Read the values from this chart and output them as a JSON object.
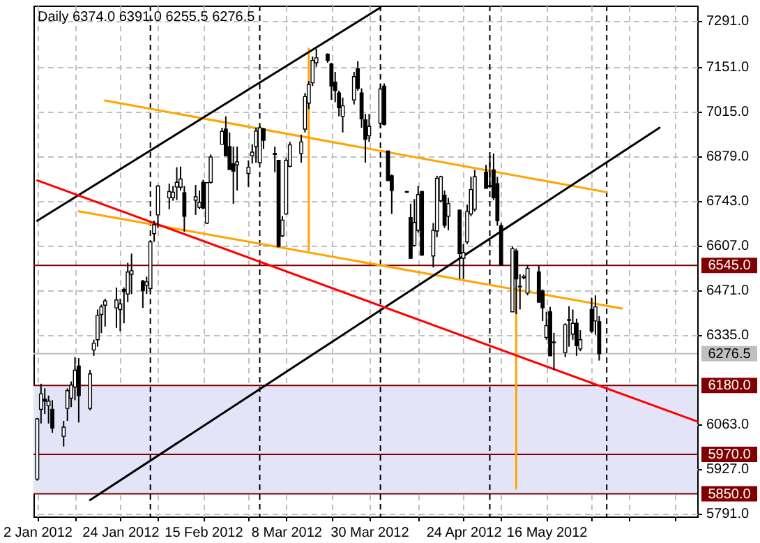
{
  "chart_data": {
    "type": "candlestick",
    "title": "Daily 6374.0 6391.0 6255.5 6276.5",
    "x": [
      "2012-01-02",
      "2012-01-03",
      "2012-01-04",
      "2012-01-05",
      "2012-01-06",
      "2012-01-09",
      "2012-01-10",
      "2012-01-11",
      "2012-01-12",
      "2012-01-13",
      "2012-01-16",
      "2012-01-17",
      "2012-01-18",
      "2012-01-19",
      "2012-01-20",
      "2012-01-23",
      "2012-01-24",
      "2012-01-25",
      "2012-01-26",
      "2012-01-27",
      "2012-01-30",
      "2012-01-31",
      "2012-02-01",
      "2012-02-02",
      "2012-02-03",
      "2012-02-06",
      "2012-02-07",
      "2012-02-08",
      "2012-02-09",
      "2012-02-10",
      "2012-02-13",
      "2012-02-14",
      "2012-02-15",
      "2012-02-16",
      "2012-02-17",
      "2012-02-20",
      "2012-02-21",
      "2012-02-22",
      "2012-02-23",
      "2012-02-24",
      "2012-02-27",
      "2012-02-28",
      "2012-02-29",
      "2012-03-01",
      "2012-03-02",
      "2012-03-05",
      "2012-03-06",
      "2012-03-07",
      "2012-03-08",
      "2012-03-09",
      "2012-03-12",
      "2012-03-13",
      "2012-03-14",
      "2012-03-15",
      "2012-03-16",
      "2012-03-19",
      "2012-03-20",
      "2012-03-21",
      "2012-03-22",
      "2012-03-23",
      "2012-03-26",
      "2012-03-27",
      "2012-03-28",
      "2012-03-29",
      "2012-03-30",
      "2012-04-02",
      "2012-04-03",
      "2012-04-04",
      "2012-04-05",
      "2012-04-09",
      "2012-04-10",
      "2012-04-11",
      "2012-04-12",
      "2012-04-13",
      "2012-04-16",
      "2012-04-17",
      "2012-04-18",
      "2012-04-19",
      "2012-04-20",
      "2012-04-23",
      "2012-04-24",
      "2012-04-25",
      "2012-04-26",
      "2012-04-27",
      "2012-04-30",
      "2012-05-01",
      "2012-05-02",
      "2012-05-03",
      "2012-05-04",
      "2012-05-07",
      "2012-05-08",
      "2012-05-09",
      "2012-05-10",
      "2012-05-11",
      "2012-05-14",
      "2012-05-15",
      "2012-05-16",
      "2012-05-17",
      "2012-05-18",
      "2012-05-21",
      "2012-05-22",
      "2012-05-23",
      "2012-05-24",
      "2012-05-25",
      "2012-05-28",
      "2012-05-29",
      "2012-05-30"
    ],
    "ohlc": [
      [
        5895,
        6081,
        5890,
        6078
      ],
      [
        6107,
        6185,
        6064,
        6154
      ],
      [
        6138,
        6171,
        6093,
        6132
      ],
      [
        6118,
        6149,
        6064,
        6132
      ],
      [
        6107,
        6135,
        6036,
        6050
      ],
      [
        6025,
        6072,
        5994,
        6053
      ],
      [
        6110,
        6171,
        6072,
        6164
      ],
      [
        6141,
        6192,
        6114,
        6181
      ],
      [
        6175,
        6266,
        6135,
        6226
      ],
      [
        6239,
        6263,
        6067,
        6149
      ],
      [
        6110,
        6227,
        6104,
        6215
      ],
      [
        6288,
        6319,
        6270,
        6308
      ],
      [
        6319,
        6411,
        6298,
        6393
      ],
      [
        6396,
        6426,
        6339,
        6419
      ],
      [
        6424,
        6444,
        6359,
        6437
      ],
      [
        6416,
        6478,
        6355,
        6440
      ],
      [
        6411,
        6444,
        6345,
        6428
      ],
      [
        6472,
        6478,
        6369,
        6466
      ],
      [
        6458,
        6553,
        6433,
        6525
      ],
      [
        6518,
        6581,
        6458,
        6529
      ],
      [
        6497,
        6501,
        6416,
        6468
      ],
      [
        6485,
        6511,
        6458,
        6495
      ],
      [
        6475,
        6620,
        6468,
        6617
      ],
      [
        6642,
        6681,
        6617,
        6669
      ],
      [
        6699,
        6790,
        6659,
        6787
      ],
      [
        6751,
        6794,
        6716,
        6770
      ],
      [
        6751,
        6787,
        6742,
        6768
      ],
      [
        6784,
        6844,
        6744,
        6798
      ],
      [
        6783,
        6846,
        6773,
        6808
      ],
      [
        6766,
        6787,
        6648,
        6695
      ],
      [
        6744,
        6790,
        6699,
        6754
      ],
      [
        6722,
        6773,
        6716,
        6737
      ],
      [
        6798,
        6806,
        6716,
        6720
      ],
      [
        6674,
        6798,
        6671,
        6797
      ],
      [
        6798,
        6883,
        6794,
        6875
      ],
      [
        6914,
        6964,
        6914,
        6953
      ],
      [
        6960,
        6999,
        6878,
        6879
      ],
      [
        6907,
        6950,
        6836,
        6837
      ],
      [
        6855,
        6907,
        6733,
        6832
      ],
      [
        6851,
        6907,
        6773,
        6860
      ],
      [
        6825,
        6865,
        6784,
        6844
      ],
      [
        6879,
        6914,
        6855,
        6890
      ],
      [
        6907,
        6964,
        6858,
        6954
      ],
      [
        6858,
        6971,
        6857,
        6964
      ],
      [
        6961,
        6964,
        6900,
        6926
      ],
      [
        6886,
        6907,
        6829,
        6883
      ],
      [
        6865,
        6866,
        6600,
        6603
      ],
      [
        6635,
        6695,
        6631,
        6683
      ],
      [
        6702,
        6872,
        6700,
        6865
      ],
      [
        6847,
        6921,
        6844,
        6912
      ],
      [
        6886,
        6943,
        6858,
        6921
      ],
      [
        6960,
        7070,
        6950,
        7059
      ],
      [
        7039,
        7106,
        7021,
        7096
      ],
      [
        7101,
        7181,
        7091,
        7169
      ],
      [
        7162,
        7205,
        7150,
        7177
      ],
      [
        7188,
        7191,
        7162,
        7169
      ],
      [
        7158,
        7162,
        7049,
        7091
      ],
      [
        7103,
        7134,
        7042,
        7077
      ],
      [
        7070,
        7077,
        6999,
        7025
      ],
      [
        6999,
        7056,
        6950,
        7031
      ],
      [
        7049,
        7134,
        7035,
        7120
      ],
      [
        7144,
        7167,
        7077,
        7084
      ],
      [
        7070,
        7084,
        6964,
        6992
      ],
      [
        6988,
        7006,
        6858,
        6929
      ],
      [
        6940,
        7006,
        6921,
        6968
      ],
      [
        6978,
        7099,
        6964,
        7082
      ],
      [
        7091,
        7099,
        6971,
        6974
      ],
      [
        6893,
        6895,
        6801,
        6804
      ],
      [
        6818,
        6822,
        6702,
        6773
      ],
      [
        6770,
        6772,
        6766,
        6768
      ],
      [
        6691,
        6733,
        6565,
        6567
      ],
      [
        6606,
        6747,
        6603,
        6676
      ],
      [
        6652,
        6787,
        6645,
        6761
      ],
      [
        6770,
        6772,
        6574,
        6577
      ],
      [
        6574,
        6674,
        6539,
        6652
      ],
      [
        6650,
        6818,
        6631,
        6810
      ],
      [
        6742,
        6818,
        6737,
        6815
      ],
      [
        6759,
        6773,
        6659,
        6667
      ],
      [
        6695,
        6751,
        6652,
        6733
      ],
      [
        6713,
        6716,
        6504,
        6581
      ],
      [
        6567,
        6610,
        6504,
        6584
      ],
      [
        6617,
        6730,
        6610,
        6709
      ],
      [
        6702,
        6815,
        6695,
        6776
      ],
      [
        6716,
        6836,
        6709,
        6815
      ],
      [
        6829,
        6851,
        6780,
        6780
      ],
      [
        6785,
        6879,
        6780,
        6788
      ],
      [
        6836,
        6886,
        6744,
        6751
      ],
      [
        6794,
        6815,
        6666,
        6681
      ],
      [
        6666,
        6674,
        6546,
        6546
      ],
      [
        6404,
        6603,
        6404,
        6596
      ],
      [
        6589,
        6596,
        6397,
        6504
      ],
      [
        6482,
        6518,
        6411,
        6480
      ],
      [
        6508,
        6517,
        6503,
        6512
      ],
      [
        6461,
        6546,
        6454,
        6536
      ],
      [
        6525,
        6546,
        6433,
        6433
      ],
      [
        6468,
        6472,
        6376,
        6416
      ],
      [
        6326,
        6404,
        6319,
        6362
      ],
      [
        6404,
        6419,
        6270,
        6270
      ],
      [
        6312,
        6340,
        6227,
        6310
      ],
      [
        6280,
        6369,
        6266,
        6365
      ],
      [
        6380,
        6421,
        6298,
        6378
      ],
      [
        6336,
        6411,
        6319,
        6369
      ],
      [
        6369,
        6383,
        6270,
        6301
      ],
      [
        6291,
        6348,
        6284,
        6319
      ],
      [
        6411,
        6447,
        6340,
        6345
      ],
      [
        6376,
        6454,
        6334,
        6419
      ],
      [
        6374,
        6391,
        6255.5,
        6276.5
      ]
    ],
    "series": [
      {
        "type": "line",
        "color": "#ffa500",
        "x": [
          "2012-01-20",
          "2012-06-01"
        ],
        "values": [
          7047,
          6768
        ]
      },
      {
        "type": "line",
        "color": "#ffa500",
        "x": [
          "2012-01-13",
          "2012-06-05"
        ],
        "values": [
          6710,
          6414
        ]
      },
      {
        "type": "line",
        "color": "#ffa500",
        "x": [
          "2012-03-14",
          "2012-03-14"
        ],
        "values": [
          7205,
          6591
        ]
      },
      {
        "type": "line",
        "color": "#ffa500",
        "x": [
          "2012-05-08",
          "2012-05-08"
        ],
        "values": [
          6478,
          5866
        ]
      },
      {
        "type": "line",
        "color": "#000000",
        "x": [
          "2012-01-02",
          "2012-04-02"
        ],
        "values": [
          6681,
          7330
        ]
      },
      {
        "type": "line",
        "color": "#000000",
        "x": [
          "2012-01-16",
          "2012-06-15"
        ],
        "values": [
          5831,
          6964
        ]
      },
      {
        "type": "line",
        "color": "#ff0000",
        "x": [
          "2012-01-02",
          "2012-06-25"
        ],
        "values": [
          6804,
          6070
        ]
      }
    ],
    "xlim": [
      "2012-01-01",
      "2012-06-25"
    ],
    "xticks": [
      {
        "value": "2012-01-02",
        "label": "2 Jan 2012"
      },
      {
        "value": "2012-01-12",
        "label": null
      },
      {
        "value": "2012-01-24",
        "label": "24 Jan 2012"
      },
      {
        "value": "2012-02-03",
        "label": null
      },
      {
        "value": "2012-02-15",
        "label": "15 Feb 2012"
      },
      {
        "value": "2012-02-27",
        "label": null
      },
      {
        "value": "2012-03-08",
        "label": "8 Mar 2012"
      },
      {
        "value": "2012-03-20",
        "label": null
      },
      {
        "value": "2012-03-30",
        "label": "30 Mar 2012"
      },
      {
        "value": "2012-04-12",
        "label": null
      },
      {
        "value": "2012-04-24",
        "label": "24 Apr 2012"
      },
      {
        "value": "2012-05-04",
        "label": null
      },
      {
        "value": "2012-05-16",
        "label": "16 May 2012"
      },
      {
        "value": "2012-05-28",
        "label": null
      },
      {
        "value": "2012-06-07",
        "label": null
      },
      {
        "value": "2012-06-19",
        "label": null
      }
    ],
    "ylim": [
      5781,
      7336
    ],
    "yticks": [
      {
        "value": 7291,
        "label": "7291.0"
      },
      {
        "value": 7151,
        "label": "7151.0"
      },
      {
        "value": 7015,
        "label": "7015.0"
      },
      {
        "value": 6879,
        "label": "6879.0"
      },
      {
        "value": 6743,
        "label": "6743.0"
      },
      {
        "value": 6607,
        "label": "6607.0"
      },
      {
        "value": 6471,
        "label": "6471.0"
      },
      {
        "value": 6335,
        "label": "6335.0"
      },
      {
        "value": 6063,
        "label": "6063.0"
      },
      {
        "value": 5927,
        "label": "5927.0"
      },
      {
        "value": 5791,
        "label": "5791.0"
      }
    ],
    "grid": true,
    "bands": [
      {
        "axis": "y",
        "from": 5850,
        "to": 6180,
        "color": "#e4e4f8"
      }
    ],
    "ref_lines": [
      {
        "axis": "y",
        "value": 6545,
        "label": "6545.0",
        "color": "#800000"
      },
      {
        "axis": "y",
        "value": 6276.5,
        "label": "6276.5",
        "color": "#c0c0c0"
      },
      {
        "axis": "y",
        "value": 6180,
        "label": "6180.0",
        "color": "#800000"
      },
      {
        "axis": "y",
        "value": 5970,
        "label": "5970.0",
        "color": "#800000"
      },
      {
        "axis": "y",
        "value": 5850,
        "label": "5850.0",
        "color": "#800000"
      },
      {
        "axis": "x",
        "value": "2012-02-01",
        "color": "#000000",
        "line_style": "dashed"
      },
      {
        "axis": "x",
        "value": "2012-03-01",
        "color": "#000000",
        "line_style": "dashed"
      },
      {
        "axis": "x",
        "value": "2012-04-02",
        "color": "#000000",
        "line_style": "dashed"
      },
      {
        "axis": "x",
        "value": "2012-05-01",
        "color": "#000000",
        "line_style": "dashed"
      },
      {
        "axis": "x",
        "value": "2012-06-01",
        "color": "#000000",
        "line_style": "dashed"
      }
    ]
  }
}
